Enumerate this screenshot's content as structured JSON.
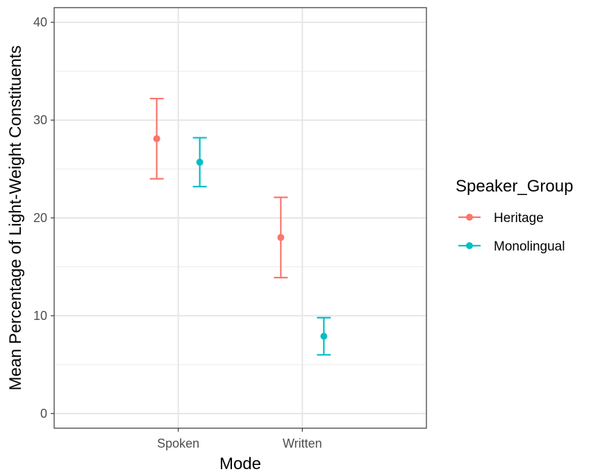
{
  "chart_data": {
    "type": "scatter",
    "subtype": "point-with-errorbars",
    "title": "",
    "xlabel": "Mode",
    "ylabel": "Mean Percentage of Light-Weight Constituents",
    "categories": [
      "Spoken",
      "Written"
    ],
    "ylim": [
      -1.5,
      41.5
    ],
    "yticks": [
      "0",
      "10",
      "20",
      "30",
      "40"
    ],
    "ytick_values": [
      0,
      10,
      20,
      30,
      40
    ],
    "grid": true,
    "legend": {
      "title": "Speaker_Group",
      "placement": "right"
    },
    "series": [
      {
        "name": "Heritage",
        "color": "#F8766D",
        "points": [
          {
            "x": "Spoken",
            "y": 28.1,
            "ymin": 24.0,
            "ymax": 32.2
          },
          {
            "x": "Written",
            "y": 18.0,
            "ymin": 13.9,
            "ymax": 22.1
          }
        ]
      },
      {
        "name": "Monolingual",
        "color": "#00BFC4",
        "points": [
          {
            "x": "Spoken",
            "y": 25.7,
            "ymin": 23.2,
            "ymax": 28.2
          },
          {
            "x": "Written",
            "y": 7.9,
            "ymin": 6.0,
            "ymax": 9.8
          }
        ]
      }
    ]
  }
}
